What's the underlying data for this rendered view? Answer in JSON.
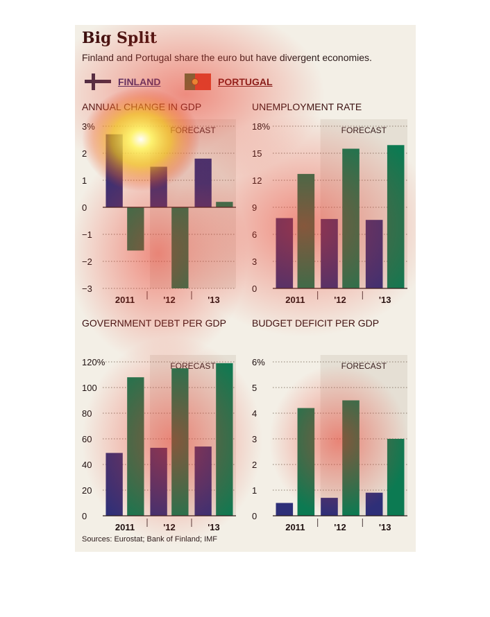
{
  "header": {
    "title": "Big Split",
    "subtitle": "Finland and Portugal share the euro but have divergent economies."
  },
  "legend": [
    {
      "label": "FINLAND",
      "icon": "finland-flag-icon",
      "color": "#2e2f78"
    },
    {
      "label": "PORTUGAL",
      "icon": "portugal-flag-icon",
      "color": "#0c7a52"
    }
  ],
  "source": "Sources: Eurostat; Bank of Finland; IMF",
  "chart_data": [
    {
      "type": "bar",
      "title": "ANNUAL CHANGE IN GDP",
      "categories": [
        "2011",
        "'12",
        "'13"
      ],
      "forecast_label": "FORECAST",
      "ylim": [
        -3,
        3
      ],
      "ytick_labels": [
        "3%",
        "2",
        "1",
        "0",
        "−1",
        "−2",
        "−3"
      ],
      "series": [
        {
          "name": "FINLAND",
          "values": [
            2.7,
            1.5,
            1.8
          ]
        },
        {
          "name": "PORTUGAL",
          "values": [
            -1.6,
            -3.0,
            0.2
          ]
        }
      ],
      "grid": true
    },
    {
      "type": "bar",
      "title": "UNEMPLOYMENT RATE",
      "categories": [
        "2011",
        "'12",
        "'13"
      ],
      "forecast_label": "FORECAST",
      "ylim": [
        0,
        18
      ],
      "ytick_labels": [
        "18%",
        "15",
        "12",
        "9",
        "6",
        "3",
        "0"
      ],
      "series": [
        {
          "name": "FINLAND",
          "values": [
            7.8,
            7.7,
            7.6
          ]
        },
        {
          "name": "PORTUGAL",
          "values": [
            12.7,
            15.5,
            15.9
          ]
        }
      ],
      "grid": true
    },
    {
      "type": "bar",
      "title": "GOVERNMENT DEBT PER GDP",
      "categories": [
        "2011",
        "'12",
        "'13"
      ],
      "forecast_label": "FORECAST",
      "ylim": [
        0,
        120
      ],
      "ytick_labels": [
        "120%",
        "100",
        "80",
        "60",
        "40",
        "20",
        "0"
      ],
      "series": [
        {
          "name": "FINLAND",
          "values": [
            49,
            53,
            54
          ]
        },
        {
          "name": "PORTUGAL",
          "values": [
            108,
            115,
            119
          ]
        }
      ],
      "grid": true
    },
    {
      "type": "bar",
      "title": "BUDGET DEFICIT PER GDP",
      "categories": [
        "2011",
        "'12",
        "'13"
      ],
      "forecast_label": "FORECAST",
      "ylim": [
        0,
        6
      ],
      "ytick_labels": [
        "6%",
        "5",
        "4",
        "3",
        "2",
        "1",
        "0"
      ],
      "series": [
        {
          "name": "FINLAND",
          "values": [
            0.5,
            0.7,
            0.9
          ]
        },
        {
          "name": "PORTUGAL",
          "values": [
            4.2,
            4.5,
            3.0
          ]
        }
      ],
      "grid": true
    }
  ]
}
